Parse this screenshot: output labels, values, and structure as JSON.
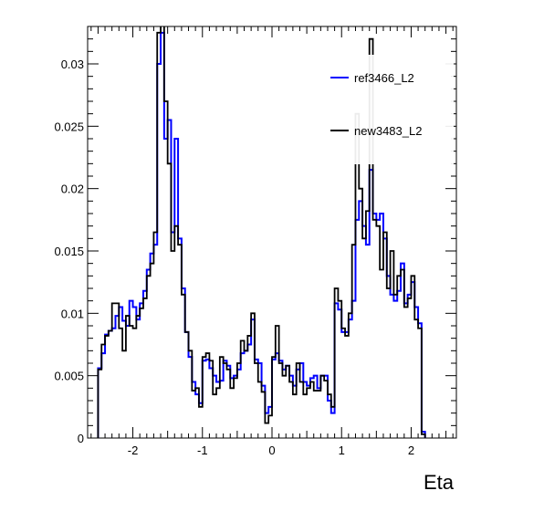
{
  "chart_data": {
    "type": "line",
    "xlabel": "Eta",
    "xlim": [
      -2.65,
      2.65
    ],
    "ylim": [
      0,
      0.033
    ],
    "x_ticks": [
      -2,
      -1,
      0,
      1,
      2
    ],
    "x_tick_labels": [
      "-2",
      "-1",
      "0",
      "1",
      "2"
    ],
    "y_ticks": [
      0,
      0.005,
      0.01,
      0.015,
      0.02,
      0.025,
      0.03
    ],
    "y_tick_labels": [
      "0",
      "0.005",
      "0.01",
      "0.015",
      "0.02",
      "0.025",
      "0.03"
    ],
    "grid": false,
    "legend_position": "top-right",
    "bin_edges_start": -2.5,
    "bin_width": 0.05,
    "series": [
      {
        "name": "ref3466_L2",
        "color": "#0000ff",
        "values": [
          0.0056,
          0.0068,
          0.0083,
          0.0086,
          0.0088,
          0.0098,
          0.0105,
          0.0094,
          0.009,
          0.011,
          0.0105,
          0.0095,
          0.0108,
          0.0118,
          0.0135,
          0.0148,
          0.0155,
          0.03,
          0.0325,
          0.024,
          0.0255,
          0.0165,
          0.024,
          0.016,
          0.012,
          0.0085,
          0.0065,
          0.0045,
          0.0035,
          0.0028,
          0.0062,
          0.0063,
          0.0056,
          0.005,
          0.0045,
          0.0046,
          0.0062,
          0.0058,
          0.0048,
          0.005,
          0.0055,
          0.0068,
          0.007,
          0.0075,
          0.0095,
          0.0063,
          0.006,
          0.0042,
          0.002,
          0.0025,
          0.0063,
          0.0068,
          0.0062,
          0.0055,
          0.0058,
          0.005,
          0.0042,
          0.0055,
          0.006,
          0.0045,
          0.0042,
          0.0048,
          0.005,
          0.004,
          0.005,
          0.005,
          0.003,
          0.002,
          0.0108,
          0.0103,
          0.0085,
          0.0085,
          0.0095,
          0.011,
          0.0175,
          0.019,
          0.017,
          0.0155,
          0.0215,
          0.018,
          0.0175,
          0.018,
          0.016,
          0.013,
          0.0115,
          0.011,
          0.0118,
          0.014,
          0.0108,
          0.0115,
          0.0125,
          0.0105,
          0.0092,
          0.0005
        ]
      },
      {
        "name": "new3483_L2",
        "color": "#000000",
        "values": [
          0.0055,
          0.0075,
          0.0082,
          0.0086,
          0.0108,
          0.0108,
          0.0088,
          0.007,
          0.0098,
          0.009,
          0.0088,
          0.0098,
          0.0104,
          0.0112,
          0.013,
          0.014,
          0.0165,
          0.0325,
          0.0335,
          0.027,
          0.022,
          0.015,
          0.017,
          0.0155,
          0.0115,
          0.0085,
          0.007,
          0.0038,
          0.004,
          0.0025,
          0.0065,
          0.0068,
          0.0062,
          0.0035,
          0.004,
          0.0065,
          0.006,
          0.0055,
          0.004,
          0.0048,
          0.006,
          0.0078,
          0.007,
          0.0082,
          0.01,
          0.006,
          0.0045,
          0.0037,
          0.0012,
          0.0018,
          0.0065,
          0.009,
          0.006,
          0.005,
          0.0058,
          0.0045,
          0.0035,
          0.006,
          0.0045,
          0.0035,
          0.004,
          0.0045,
          0.0038,
          0.0038,
          0.005,
          0.0046,
          0.0035,
          0.0025,
          0.012,
          0.011,
          0.0088,
          0.0082,
          0.01,
          0.0155,
          0.026,
          0.02,
          0.016,
          0.0182,
          0.032,
          0.0175,
          0.017,
          0.0135,
          0.0165,
          0.012,
          0.015,
          0.0115,
          0.013,
          0.0135,
          0.0105,
          0.0112,
          0.013,
          0.0095,
          0.0088,
          0.0003
        ]
      }
    ]
  }
}
